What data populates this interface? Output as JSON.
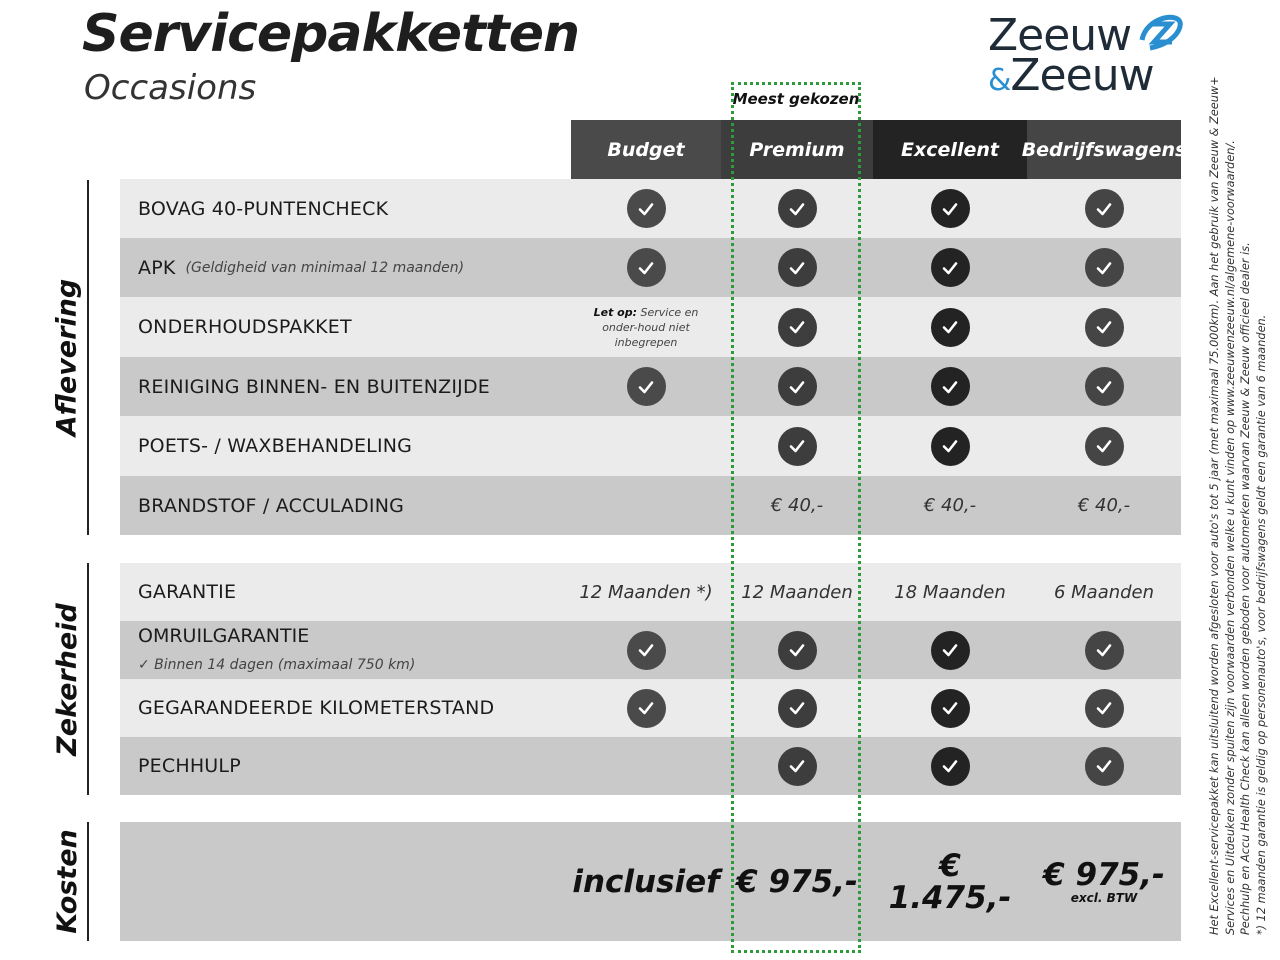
{
  "title": "Servicepakketten",
  "subtitle": "Occasions",
  "logo": {
    "line1": "Zeeuw",
    "amp": "&",
    "line2": "Zeeuw",
    "colors": {
      "text": "#1f2b36",
      "accent": "#2a8fd0"
    }
  },
  "highlight_label": "Meest gekozen",
  "highlight_color": "#2e9b3a",
  "columns": [
    {
      "label": "Budget",
      "color": "#4a4a4a"
    },
    {
      "label": "Premium",
      "color": "#3d3d3d"
    },
    {
      "label": "Excellent",
      "color": "#232323"
    },
    {
      "label": "Bedrijfswagens",
      "color": "#454545"
    }
  ],
  "sections": [
    {
      "label": "Aflevering",
      "rows": [
        {
          "label": "BOVAG 40-PUNTENCHECK",
          "cells": [
            "check",
            "check",
            "check",
            "check"
          ]
        },
        {
          "label": "APK",
          "sub": "(Geldigheid van minimaal 12 maanden)",
          "cells": [
            "check",
            "check",
            "check",
            "check"
          ]
        },
        {
          "label": "ONDERHOUDSPAKKET",
          "cells": [
            {
              "note_bold": "Let op:",
              "note": "Service en onder-houd niet inbegrepen"
            },
            "check",
            "check",
            "check"
          ]
        },
        {
          "label": "REINIGING BINNEN- EN BUITENZIJDE",
          "cells": [
            "check",
            "check",
            "check",
            "check"
          ]
        },
        {
          "label": "POETS- / WAXBEHANDELING",
          "cells": [
            "",
            "check",
            "check",
            "check"
          ]
        },
        {
          "label": "BRANDSTOF / ACCULADING",
          "cells": [
            "",
            "€ 40,-",
            "€ 40,-",
            "€ 40,-"
          ]
        }
      ]
    },
    {
      "label": "Zekerheid",
      "rows": [
        {
          "label": "GARANTIE",
          "cells": [
            "12 Maanden *)",
            "12 Maanden",
            "18 Maanden",
            "6 Maanden"
          ]
        },
        {
          "label": "OMRUILGARANTIE",
          "sub2": "✓   Binnen 14 dagen (maximaal 750 km)",
          "cells": [
            "check",
            "check",
            "check",
            "check"
          ]
        },
        {
          "label": "GEGARANDEERDE KILOMETERSTAND",
          "cells": [
            "check",
            "check",
            "check",
            "check"
          ]
        },
        {
          "label": "PECHHULP",
          "cells": [
            "",
            "check",
            "check",
            "check"
          ]
        }
      ]
    },
    {
      "label": "Kosten",
      "rows": [
        {
          "label": "",
          "cells": [
            {
              "price": "inclusief"
            },
            {
              "price": "€ 975,-"
            },
            {
              "price": "€ 1.475,-"
            },
            {
              "price": "€ 975,-",
              "small": "excl. BTW"
            }
          ]
        }
      ]
    }
  ],
  "footnotes": [
    "Het Excellent-servicepakket kan uitsluitend worden afgesloten voor auto's tot 5 jaar (met maximaal 75.000km). Aan het gebruik van Zeeuw & Zeeuw+",
    "Services en Uitdeuken zonder spuiten zijn voorwaarden verbonden welke u kunt vinden op www.zeeuwenzeeuw.nl/algemene-voorwaarden/.",
    "Pechhulp en Accu Health Check kan alleen worden geboden voor automerken waarvan Zeeuw & Zeeuw officieel dealer is.",
    "*) 12 maanden garantie is geldig op personenauto's, voor bedrijfswagens geldt een garantie van 6 maanden."
  ]
}
